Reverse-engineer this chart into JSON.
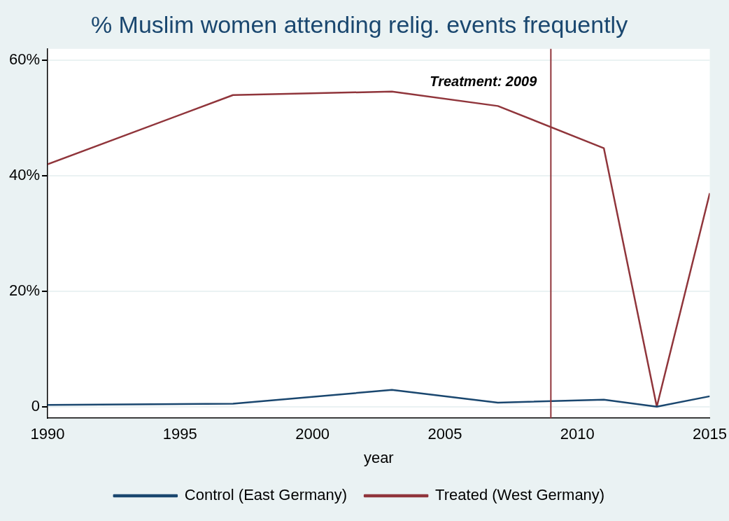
{
  "chart_data": {
    "type": "line",
    "title": "% Muslim women attending relig. events frequently",
    "xlabel": "year",
    "x": [
      1990,
      1997,
      2003,
      2007,
      2011,
      2013,
      2015
    ],
    "series": [
      {
        "name": "Control (East Germany)",
        "color": "#1a476f",
        "values": [
          0.3,
          0.5,
          2.9,
          0.7,
          1.2,
          0,
          1.8
        ]
      },
      {
        "name": "Treated (West Germany)",
        "color": "#90353b",
        "values": [
          42,
          54,
          54.6,
          52.1,
          44.8,
          0,
          37
        ]
      }
    ],
    "xlim": [
      1990,
      2015
    ],
    "xticks": [
      1990,
      1995,
      2000,
      2005,
      2010,
      2015
    ],
    "ylim": [
      -2,
      62
    ],
    "yticks": [
      {
        "value": 0,
        "label": "0"
      },
      {
        "value": 20,
        "label": "20%"
      },
      {
        "value": 40,
        "label": "40%"
      },
      {
        "value": 60,
        "label": "60%"
      }
    ],
    "ref_lines": [
      {
        "axis": "x",
        "value": 2009,
        "label": "Treatment: 2009",
        "color": "#90353b"
      }
    ],
    "grid": "y",
    "legend": "bottom",
    "marker": "none",
    "line_style": "solid"
  }
}
